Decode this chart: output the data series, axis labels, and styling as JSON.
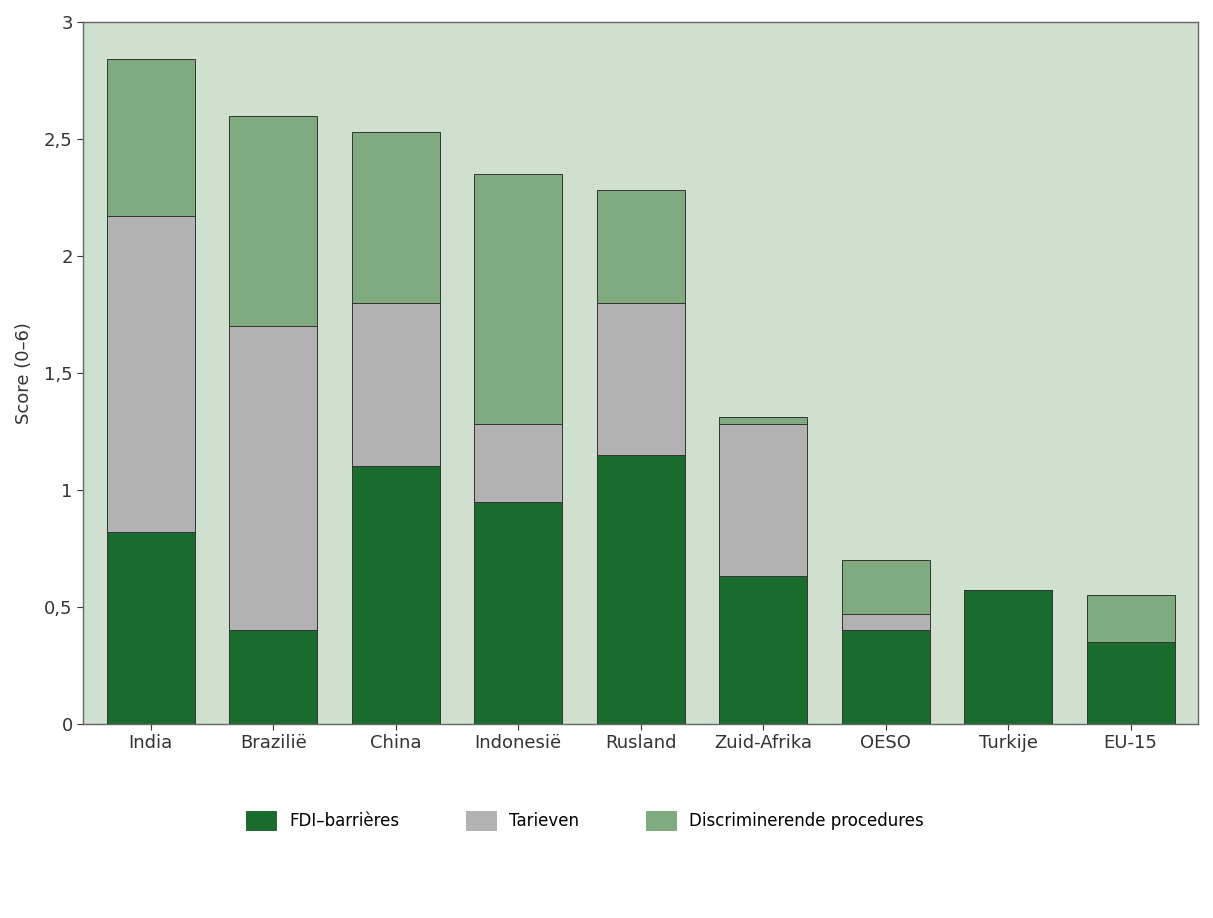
{
  "categories": [
    "India",
    "Brazilië",
    "China",
    "Indonesië",
    "Rusland",
    "Zuid-Afrika",
    "OESO",
    "Turkije",
    "EU-15"
  ],
  "fdi": [
    0.82,
    0.4,
    1.1,
    0.95,
    1.15,
    0.63,
    0.4,
    0.57,
    0.35
  ],
  "tarieven": [
    1.35,
    1.3,
    0.7,
    0.33,
    0.65,
    0.65,
    0.07,
    0.0,
    0.0
  ],
  "discriminerende": [
    0.67,
    0.9,
    0.73,
    1.07,
    0.48,
    0.03,
    0.23,
    0.0,
    0.2
  ],
  "color_fdi": "#1a6b2e",
  "color_tarieven": "#b2b2b2",
  "color_discriminerende": "#80ab80",
  "background_color": "#cfe0cf",
  "ylim": [
    0,
    3
  ],
  "yticks": [
    0,
    0.5,
    1.0,
    1.5,
    2.0,
    2.5,
    3.0
  ],
  "ytick_labels": [
    "0",
    "0,5",
    "1",
    "1,5",
    "2",
    "2,5",
    "3"
  ],
  "ylabel": "Score (0–6)",
  "legend_fdi": "FDI–barrières",
  "legend_tarieven": "Tarieven",
  "legend_discriminerende": "Discriminerende procedures",
  "bar_width": 0.72,
  "bar_edge_color": "#333333",
  "bar_edge_width": 0.7,
  "spine_color": "#666666"
}
